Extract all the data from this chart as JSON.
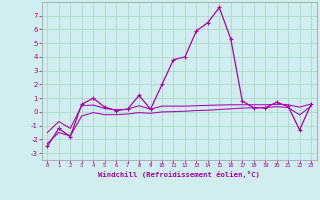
{
  "xlabel": "Windchill (Refroidissement éolien,°C)",
  "xlim": [
    -0.5,
    23.5
  ],
  "ylim": [
    -3.5,
    8.0
  ],
  "yticks": [
    -3,
    -2,
    -1,
    0,
    1,
    2,
    3,
    4,
    5,
    6,
    7
  ],
  "xticks": [
    0,
    1,
    2,
    3,
    4,
    5,
    6,
    7,
    8,
    9,
    10,
    11,
    12,
    13,
    14,
    15,
    16,
    17,
    18,
    19,
    20,
    21,
    22,
    23
  ],
  "bg_color": "#d0eef0",
  "grid_color": "#b0d8cc",
  "line_color": "#aa00aa",
  "main_x": [
    0,
    1,
    2,
    3,
    4,
    5,
    6,
    7,
    8,
    9,
    10,
    11,
    12,
    13,
    14,
    15,
    16,
    17,
    18,
    19,
    20,
    21,
    22,
    23
  ],
  "main_y": [
    -2.5,
    -1.2,
    -1.8,
    0.55,
    1.0,
    0.35,
    0.1,
    0.2,
    1.2,
    0.2,
    2.0,
    3.8,
    4.0,
    5.9,
    6.5,
    7.6,
    5.3,
    0.8,
    0.3,
    0.3,
    0.7,
    0.4,
    -1.3,
    0.55
  ],
  "upper_y": [
    -1.5,
    -0.7,
    -1.2,
    0.45,
    0.5,
    0.25,
    0.15,
    0.2,
    0.45,
    0.2,
    0.42,
    0.42,
    0.42,
    0.45,
    0.48,
    0.5,
    0.52,
    0.52,
    0.52,
    0.52,
    0.55,
    0.52,
    0.35,
    0.58
  ],
  "lower_y": [
    -2.3,
    -1.5,
    -1.75,
    -0.3,
    -0.05,
    -0.2,
    -0.2,
    -0.15,
    -0.05,
    -0.1,
    0.0,
    0.02,
    0.05,
    0.1,
    0.12,
    0.18,
    0.22,
    0.28,
    0.3,
    0.32,
    0.38,
    0.32,
    -0.22,
    0.42
  ]
}
